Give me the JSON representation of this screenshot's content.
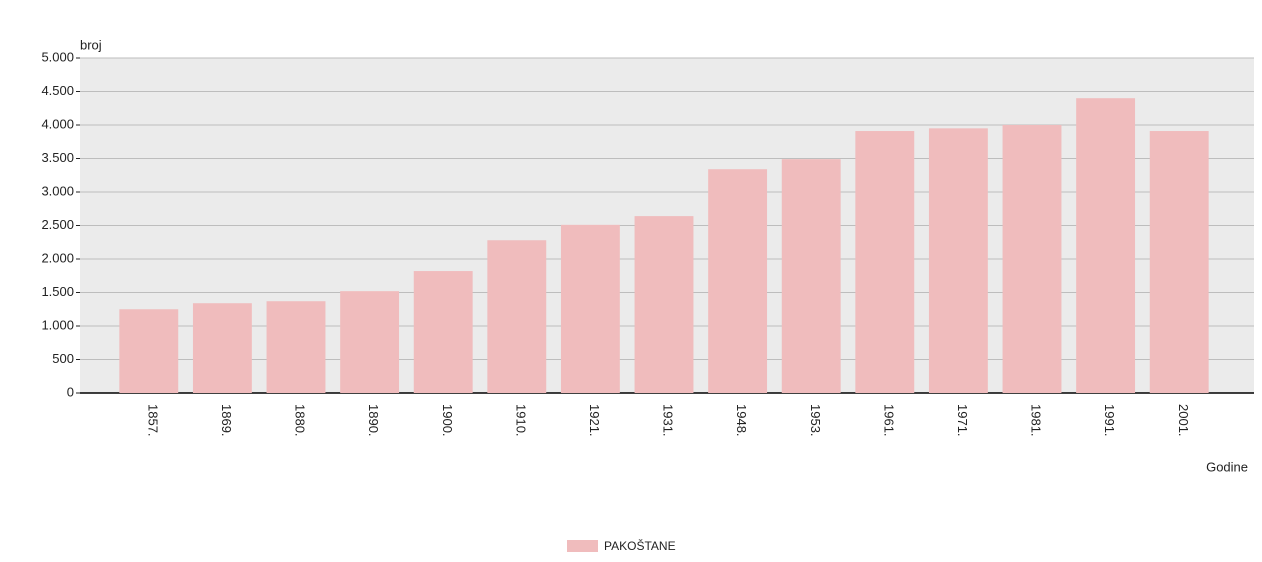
{
  "chart_data": {
    "type": "bar",
    "y_label": "broj",
    "x_label": "Godine",
    "categories": [
      "1857.",
      "1869.",
      "1880.",
      "1890.",
      "1900.",
      "1910.",
      "1921.",
      "1931.",
      "1948.",
      "1953.",
      "1961.",
      "1971.",
      "1981.",
      "1991.",
      "2001."
    ],
    "series": [
      {
        "name": "PAKOŠTANE",
        "color": "#f0bcbd",
        "values": [
          1250,
          1340,
          1370,
          1520,
          1820,
          2280,
          2510,
          2640,
          3340,
          3490,
          3910,
          3950,
          4000,
          4400,
          3910
        ]
      }
    ],
    "ylim": [
      0,
      5000
    ],
    "yticks": [
      0,
      500,
      {
        "value": 1000,
        "label": "1.000"
      },
      {
        "value": 1500,
        "label": "1.500"
      },
      {
        "value": 2000,
        "label": "2.000"
      },
      {
        "value": 2500,
        "label": "2.500"
      },
      {
        "value": 3000,
        "label": "3.000"
      },
      {
        "value": 3500,
        "label": "3.500"
      },
      {
        "value": 4000,
        "label": "4.000"
      },
      {
        "value": 4500,
        "label": "4.500"
      },
      {
        "value": 5000,
        "label": "5.000"
      }
    ],
    "grid": true
  }
}
